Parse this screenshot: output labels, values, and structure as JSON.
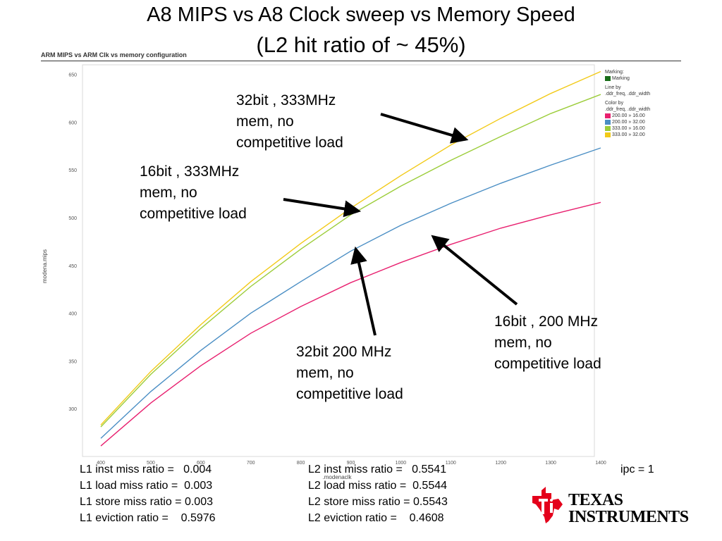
{
  "slide": {
    "title_line1": "A8 MIPS vs A8 Clock sweep vs Memory Speed",
    "title_line2": "(L2 hit ratio of ~ 45%)"
  },
  "chart_data": {
    "type": "line",
    "title": "ARM MIPS vs ARM Clk vs memory configuration",
    "xlabel": ".modenaclk",
    "ylabel": "modena.mips",
    "x": [
      400,
      500,
      600,
      700,
      800,
      900,
      1000,
      1100,
      1200,
      1300,
      1400
    ],
    "xlim": [
      400,
      1400
    ],
    "ylim": [
      250,
      660
    ],
    "yticks": [
      300,
      350,
      400,
      450,
      500,
      550,
      600,
      650
    ],
    "grid": false,
    "legend_position": "right",
    "series": [
      {
        "name": "200.00 » 16.00",
        "color": "#e8206f",
        "values": [
          261,
          306,
          345,
          379,
          407,
          432,
          453,
          472,
          489,
          503,
          516
        ]
      },
      {
        "name": "200.00 » 32.00",
        "color": "#4a8ec4",
        "values": [
          269,
          318,
          361,
          400,
          433,
          465,
          492,
          515,
          536,
          555,
          573
        ]
      },
      {
        "name": "333.00 » 16.00",
        "color": "#9ccd3a",
        "values": [
          281,
          336,
          384,
          428,
          467,
          503,
          533,
          560,
          585,
          609,
          629
        ]
      },
      {
        "name": "333.00 » 32.00",
        "color": "#f2ca18",
        "values": [
          283,
          339,
          388,
          433,
          473,
          510,
          544,
          576,
          604,
          630,
          653
        ]
      }
    ]
  },
  "legend": {
    "marking_label": "Marking:",
    "marking_item": "Marking",
    "marking_color": "#1a6e1a",
    "line_by_label": "Line by",
    "line_by_value": ".ddr_freq, .ddr_width",
    "color_by_label": "Color by",
    "color_by_value": ".ddr_freq, .ddr_width"
  },
  "annotations": {
    "a1": "32bit , 333MHz\nmem, no\ncompetitive load",
    "a2": "16bit , 333MHz\nmem, no\ncompetitive load",
    "a3": "16bit , 200 MHz\nmem, no\ncompetitive load",
    "a4": "32bit 200 MHz\nmem, no\ncompetitive load"
  },
  "stats": {
    "l1": "L1 inst miss ratio =   0.004\nL1 load miss ratio =  0.003\nL1 store miss ratio = 0.003\nL1 eviction ratio =    0.5976",
    "l2": "L2 inst miss ratio =   0.5541\nL2 load miss ratio =  0.5544\nL2 store miss ratio = 0.5543\nL2 eviction ratio =    0.4608",
    "ipc": "ipc = 1"
  },
  "logo": {
    "line1": "TEXAS",
    "line2": "INSTRUMENTS",
    "color": "#e4001b"
  }
}
